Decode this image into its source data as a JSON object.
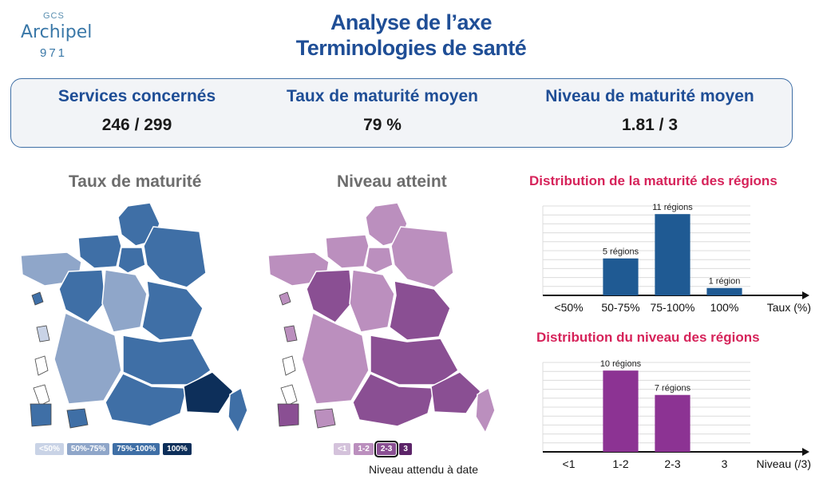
{
  "logo": {
    "top": "GCS",
    "name": "Archipel",
    "number": "971"
  },
  "title": {
    "line1": "Analyse de l’axe",
    "line2": "Terminologies de santé"
  },
  "kpis": [
    {
      "label": "Services concernés",
      "value": "246 / 299"
    },
    {
      "label": "Taux de maturité moyen",
      "value": "79 %"
    },
    {
      "label": "Niveau de maturité moyen",
      "value": "1.81 / 3"
    }
  ],
  "map_left": {
    "title": "Taux de maturité",
    "legend": [
      {
        "label": "<50%",
        "color": "#c9d3e6"
      },
      {
        "label": "50%-75%",
        "color": "#8fa6c9"
      },
      {
        "label": "75%-100%",
        "color": "#3f6fa6"
      },
      {
        "label": "100%",
        "color": "#0d2f5a"
      }
    ]
  },
  "map_right": {
    "title": "Niveau atteint",
    "legend": [
      {
        "label": "<1",
        "color": "#d4c2db"
      },
      {
        "label": "1-2",
        "color": "#bb8fbe"
      },
      {
        "label": "2-3",
        "color": "#8a4f93"
      },
      {
        "label": "3",
        "color": "#5c2468"
      }
    ],
    "note": "Niveau attendu à date"
  },
  "chart_data": [
    {
      "type": "bar",
      "title": "Distribution de la maturité des régions",
      "categories": [
        "<50%",
        "50-75%",
        "75-100%",
        "100%"
      ],
      "values": [
        0,
        5,
        11,
        1
      ],
      "data_labels": [
        "",
        "5 régions",
        "11 régions",
        "1 région"
      ],
      "xlabel": "Taux (%)",
      "color": "#1f5a93"
    },
    {
      "type": "bar",
      "title": "Distribution du niveau des régions",
      "categories": [
        "<1",
        "1-2",
        "2-3",
        "3"
      ],
      "values": [
        0,
        10,
        7,
        0
      ],
      "data_labels": [
        "",
        "10 régions",
        "7 régions",
        ""
      ],
      "xlabel": "Niveau (/3)",
      "color": "#8c3393"
    }
  ]
}
